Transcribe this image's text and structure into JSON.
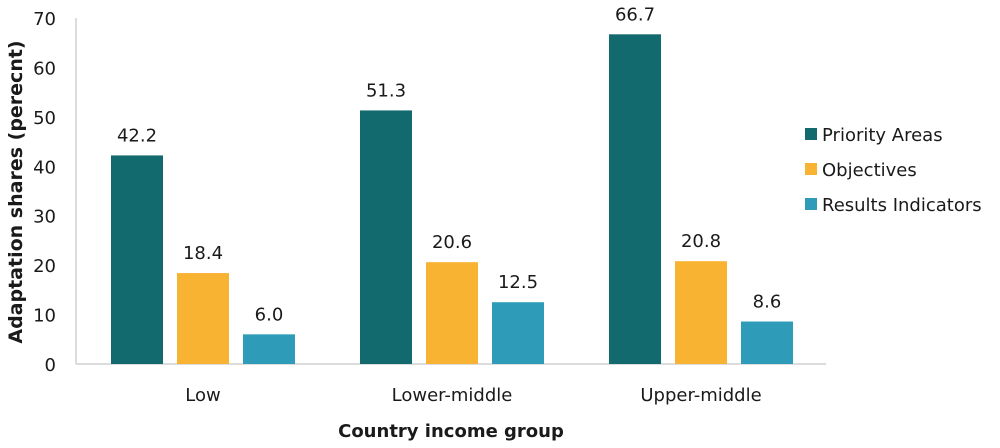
{
  "chart_data": {
    "type": "bar",
    "title": "",
    "xlabel": "Country income group",
    "ylabel": "Adaptation shares (perecnt)",
    "ylim": [
      0,
      70
    ],
    "yticks": [
      0,
      10,
      20,
      30,
      40,
      50,
      60,
      70
    ],
    "grid": false,
    "legend_position": "right",
    "categories": [
      "Low",
      "Lower-middle",
      "Upper-middle"
    ],
    "series": [
      {
        "name": "Priority Areas",
        "color": "#136a6e",
        "values": [
          42.2,
          51.3,
          66.7
        ],
        "labels": [
          "42.2",
          "51.3",
          "66.7"
        ]
      },
      {
        "name": "Objectives",
        "color": "#f9b332",
        "values": [
          18.4,
          20.6,
          20.8
        ],
        "labels": [
          "18.4",
          "20.6",
          "20.8"
        ]
      },
      {
        "name": "Results Indicators",
        "color": "#2e9cb9",
        "values": [
          6.0,
          12.5,
          8.6
        ],
        "labels": [
          "6.0",
          "12.5",
          "8.6"
        ]
      }
    ]
  }
}
